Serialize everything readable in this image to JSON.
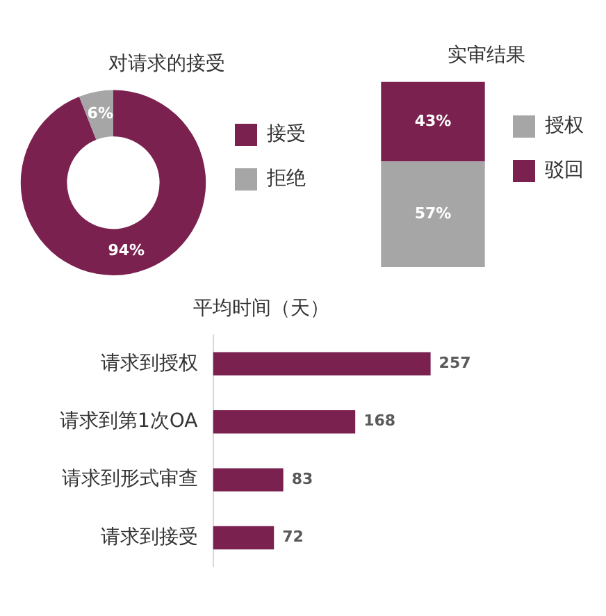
{
  "chart_data": [
    {
      "type": "donut",
      "title": "对请求的接受",
      "categories": [
        "接受",
        "拒绝"
      ],
      "values": [
        94,
        6
      ],
      "value_labels": [
        "94%",
        "6%"
      ],
      "colors": [
        "#7b2150",
        "#a6a6a6"
      ],
      "legend": "right"
    },
    {
      "type": "bar",
      "title": "实审结果",
      "categories": [
        null
      ],
      "stacked": true,
      "legend": "right",
      "series": [
        {
          "name": "授权",
          "color": "#a6a6a6",
          "values": [
            57
          ],
          "value_labels": [
            "57%"
          ]
        },
        {
          "name": "驳回",
          "color": "#7b2150",
          "values": [
            43
          ],
          "value_labels": [
            "43%"
          ]
        }
      ]
    },
    {
      "type": "bar",
      "title": "平均时间（天）",
      "orientation": "horizontal",
      "categories": [
        "请求到授权",
        "请求到第1次OA",
        "请求到形式审查",
        "请求到接受"
      ],
      "values": [
        257,
        168,
        83,
        72
      ],
      "color": "#7b2150",
      "data_labels": true
    }
  ]
}
